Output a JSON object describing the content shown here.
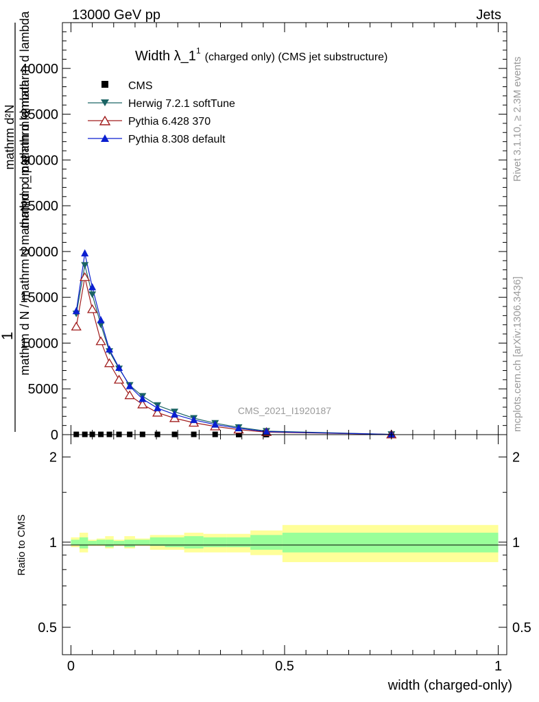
{
  "header": {
    "left": "13000 GeV pp",
    "right": "Jets"
  },
  "side_text": {
    "top": "Rivet 3.1.10, ≥ 2.3M events",
    "bottom": "mcplots.cern.ch [arXiv:1306.3436]"
  },
  "watermark": "CMS_2021_I1920187",
  "colors": {
    "cms": "#000000",
    "herwig": "#1b6464",
    "pythia6": "#a01c1c",
    "pythia8": "#0a1fd0",
    "band_outer": "#ffff99",
    "band_inner": "#99ff99"
  },
  "chart_data": [
    {
      "type": "line",
      "title_main": "Width λ_1",
      "title_sup": "1",
      "title_rest": "(charged only) (CMS jet substructure)",
      "ylabel_num": "1",
      "ylabel_den": "mathrm d N / mathrm d mathrm d p_mathrm d lambda",
      "ylabel_mid_num": "mathrm d²N",
      "ylabel_mid_den": "mathrm d p mathrm d mathrm d lambda",
      "ylim": [
        0,
        45000
      ],
      "xlim": [
        -0.02,
        1.02
      ],
      "yticks": [
        0,
        5000,
        10000,
        15000,
        20000,
        25000,
        30000,
        35000,
        40000
      ],
      "ytick_labels": [
        "0",
        "5000",
        "10000",
        "15000",
        "20000",
        "25000",
        "30000",
        "35000",
        "40000"
      ],
      "legend_position": "top-left",
      "x": [
        0.0125,
        0.0325,
        0.05,
        0.07,
        0.09,
        0.1125,
        0.1375,
        0.1675,
        0.2025,
        0.2425,
        0.2875,
        0.3375,
        0.3925,
        0.4575,
        0.75
      ],
      "series": [
        {
          "name": "CMS",
          "marker": "square",
          "values": [
            30,
            30,
            30,
            30,
            30,
            30,
            30,
            30,
            30,
            30,
            30,
            30,
            10,
            10,
            1
          ]
        },
        {
          "name": "Herwig 7.2.1 softTune",
          "marker": "triangle-down",
          "values": [
            13200,
            18500,
            15300,
            12000,
            9100,
            7200,
            5400,
            4200,
            3200,
            2500,
            1800,
            1250,
            800,
            380,
            30
          ]
        },
        {
          "name": "Pythia 6.428 370",
          "marker": "triangle-up-open",
          "values": [
            11800,
            17200,
            13700,
            10200,
            7800,
            6000,
            4300,
            3300,
            2400,
            1800,
            1300,
            900,
            550,
            280,
            20
          ]
        },
        {
          "name": "Pythia 8.308 default",
          "marker": "triangle-up",
          "values": [
            13500,
            19800,
            16100,
            12500,
            9300,
            7300,
            5300,
            3900,
            2900,
            2200,
            1600,
            1100,
            700,
            330,
            25
          ]
        }
      ]
    },
    {
      "type": "area",
      "ylabel": "Ratio to CMS",
      "xlabel": "width (charged-only)",
      "ylim": [
        0.4,
        2.4
      ],
      "yscale": "log",
      "yticks": [
        0.5,
        1,
        2
      ],
      "ytick_labels": [
        "0.5",
        "1",
        "2"
      ],
      "xticks": [
        0,
        0.5,
        1
      ],
      "xtick_labels": [
        "0",
        "0.5",
        "1"
      ],
      "bins": [
        {
          "lo": 0.0,
          "hi": 0.02,
          "inner": [
            0.98,
            1.02
          ],
          "outer": [
            0.96,
            1.04
          ]
        },
        {
          "lo": 0.02,
          "hi": 0.04,
          "inner": [
            0.95,
            1.04
          ],
          "outer": [
            0.92,
            1.08
          ]
        },
        {
          "lo": 0.04,
          "hi": 0.06,
          "inner": [
            0.98,
            1.01
          ],
          "outer": [
            0.97,
            1.02
          ]
        },
        {
          "lo": 0.06,
          "hi": 0.08,
          "inner": [
            0.98,
            1.02
          ],
          "outer": [
            0.97,
            1.03
          ]
        },
        {
          "lo": 0.08,
          "hi": 0.1,
          "inner": [
            0.96,
            1.02
          ],
          "outer": [
            0.95,
            1.05
          ]
        },
        {
          "lo": 0.1,
          "hi": 0.125,
          "inner": [
            0.98,
            1.01
          ],
          "outer": [
            0.97,
            1.02
          ]
        },
        {
          "lo": 0.125,
          "hi": 0.15,
          "inner": [
            0.96,
            1.02
          ],
          "outer": [
            0.95,
            1.05
          ]
        },
        {
          "lo": 0.15,
          "hi": 0.185,
          "inner": [
            0.98,
            1.02
          ],
          "outer": [
            0.97,
            1.03
          ]
        },
        {
          "lo": 0.185,
          "hi": 0.22,
          "inner": [
            0.97,
            1.04
          ],
          "outer": [
            0.94,
            1.06
          ]
        },
        {
          "lo": 0.22,
          "hi": 0.265,
          "inner": [
            0.96,
            1.04
          ],
          "outer": [
            0.94,
            1.06
          ]
        },
        {
          "lo": 0.265,
          "hi": 0.31,
          "inner": [
            0.95,
            1.05
          ],
          "outer": [
            0.92,
            1.08
          ]
        },
        {
          "lo": 0.31,
          "hi": 0.365,
          "inner": [
            0.96,
            1.04
          ],
          "outer": [
            0.92,
            1.07
          ]
        },
        {
          "lo": 0.365,
          "hi": 0.42,
          "inner": [
            0.96,
            1.04
          ],
          "outer": [
            0.92,
            1.07
          ]
        },
        {
          "lo": 0.42,
          "hi": 0.495,
          "inner": [
            0.94,
            1.06
          ],
          "outer": [
            0.9,
            1.1
          ]
        },
        {
          "lo": 0.495,
          "hi": 1.0,
          "inner": [
            0.92,
            1.08
          ],
          "outer": [
            0.85,
            1.15
          ]
        }
      ]
    }
  ]
}
